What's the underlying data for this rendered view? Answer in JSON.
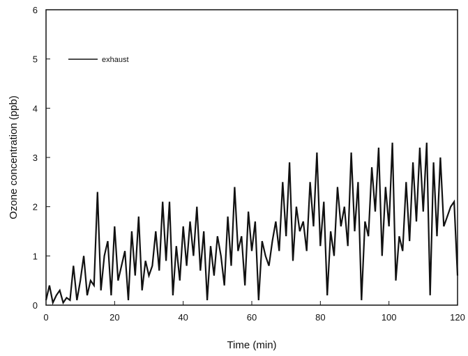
{
  "chart_data": {
    "type": "line",
    "title": "",
    "xlabel": "Time (min)",
    "ylabel": "Ozone concentration (ppb)",
    "xlim": [
      0,
      120
    ],
    "ylim": [
      0,
      6
    ],
    "x_ticks": [
      0,
      20,
      40,
      60,
      80,
      100,
      120
    ],
    "y_ticks": [
      0,
      1,
      2,
      3,
      4,
      5,
      6
    ],
    "grid": false,
    "legend_position": "top-left",
    "series": [
      {
        "name": "exhaust",
        "color": "#111111",
        "x": [
          0,
          1,
          2,
          3,
          4,
          5,
          6,
          7,
          8,
          9,
          10,
          11,
          12,
          13,
          14,
          15,
          16,
          17,
          18,
          19,
          20,
          21,
          22,
          23,
          24,
          25,
          26,
          27,
          28,
          29,
          30,
          31,
          32,
          33,
          34,
          35,
          36,
          37,
          38,
          39,
          40,
          41,
          42,
          43,
          44,
          45,
          46,
          47,
          48,
          49,
          50,
          51,
          52,
          53,
          54,
          55,
          56,
          57,
          58,
          59,
          60,
          61,
          62,
          63,
          64,
          65,
          66,
          67,
          68,
          69,
          70,
          71,
          72,
          73,
          74,
          75,
          76,
          77,
          78,
          79,
          80,
          81,
          82,
          83,
          84,
          85,
          86,
          87,
          88,
          89,
          90,
          91,
          92,
          93,
          94,
          95,
          96,
          97,
          98,
          99,
          100,
          101,
          102,
          103,
          104,
          105,
          106,
          107,
          108,
          109,
          110,
          111,
          112,
          113,
          114,
          115,
          116,
          117,
          118,
          119,
          120
        ],
        "y": [
          0.1,
          0.4,
          0.05,
          0.2,
          0.3,
          0.05,
          0.15,
          0.1,
          0.8,
          0.1,
          0.5,
          1.0,
          0.2,
          0.5,
          0.4,
          2.3,
          0.3,
          1.0,
          1.3,
          0.2,
          1.6,
          0.5,
          0.8,
          1.1,
          0.1,
          1.5,
          0.6,
          1.8,
          0.3,
          0.9,
          0.6,
          0.8,
          1.5,
          0.7,
          2.1,
          0.9,
          2.1,
          0.2,
          1.2,
          0.5,
          1.6,
          0.8,
          1.7,
          1.0,
          2.0,
          0.7,
          1.5,
          0.1,
          1.2,
          0.6,
          1.4,
          1.0,
          0.4,
          1.8,
          0.8,
          2.4,
          1.1,
          1.4,
          0.4,
          1.9,
          1.1,
          1.7,
          0.1,
          1.3,
          1.0,
          0.8,
          1.3,
          1.7,
          1.1,
          2.5,
          1.4,
          2.9,
          0.9,
          2.0,
          1.5,
          1.7,
          1.1,
          2.5,
          1.6,
          3.1,
          1.2,
          2.1,
          0.2,
          1.5,
          1.0,
          2.4,
          1.6,
          2.0,
          1.2,
          3.1,
          1.5,
          2.5,
          0.1,
          1.7,
          1.4,
          2.8,
          1.9,
          3.2,
          1.0,
          2.4,
          1.6,
          3.3,
          0.5,
          1.4,
          1.1,
          2.5,
          1.3,
          2.9,
          1.7,
          3.2,
          1.9,
          3.3,
          0.2,
          2.9,
          1.4,
          3.0,
          1.6,
          1.8,
          2.0,
          2.1,
          0.6
        ]
      }
    ]
  }
}
